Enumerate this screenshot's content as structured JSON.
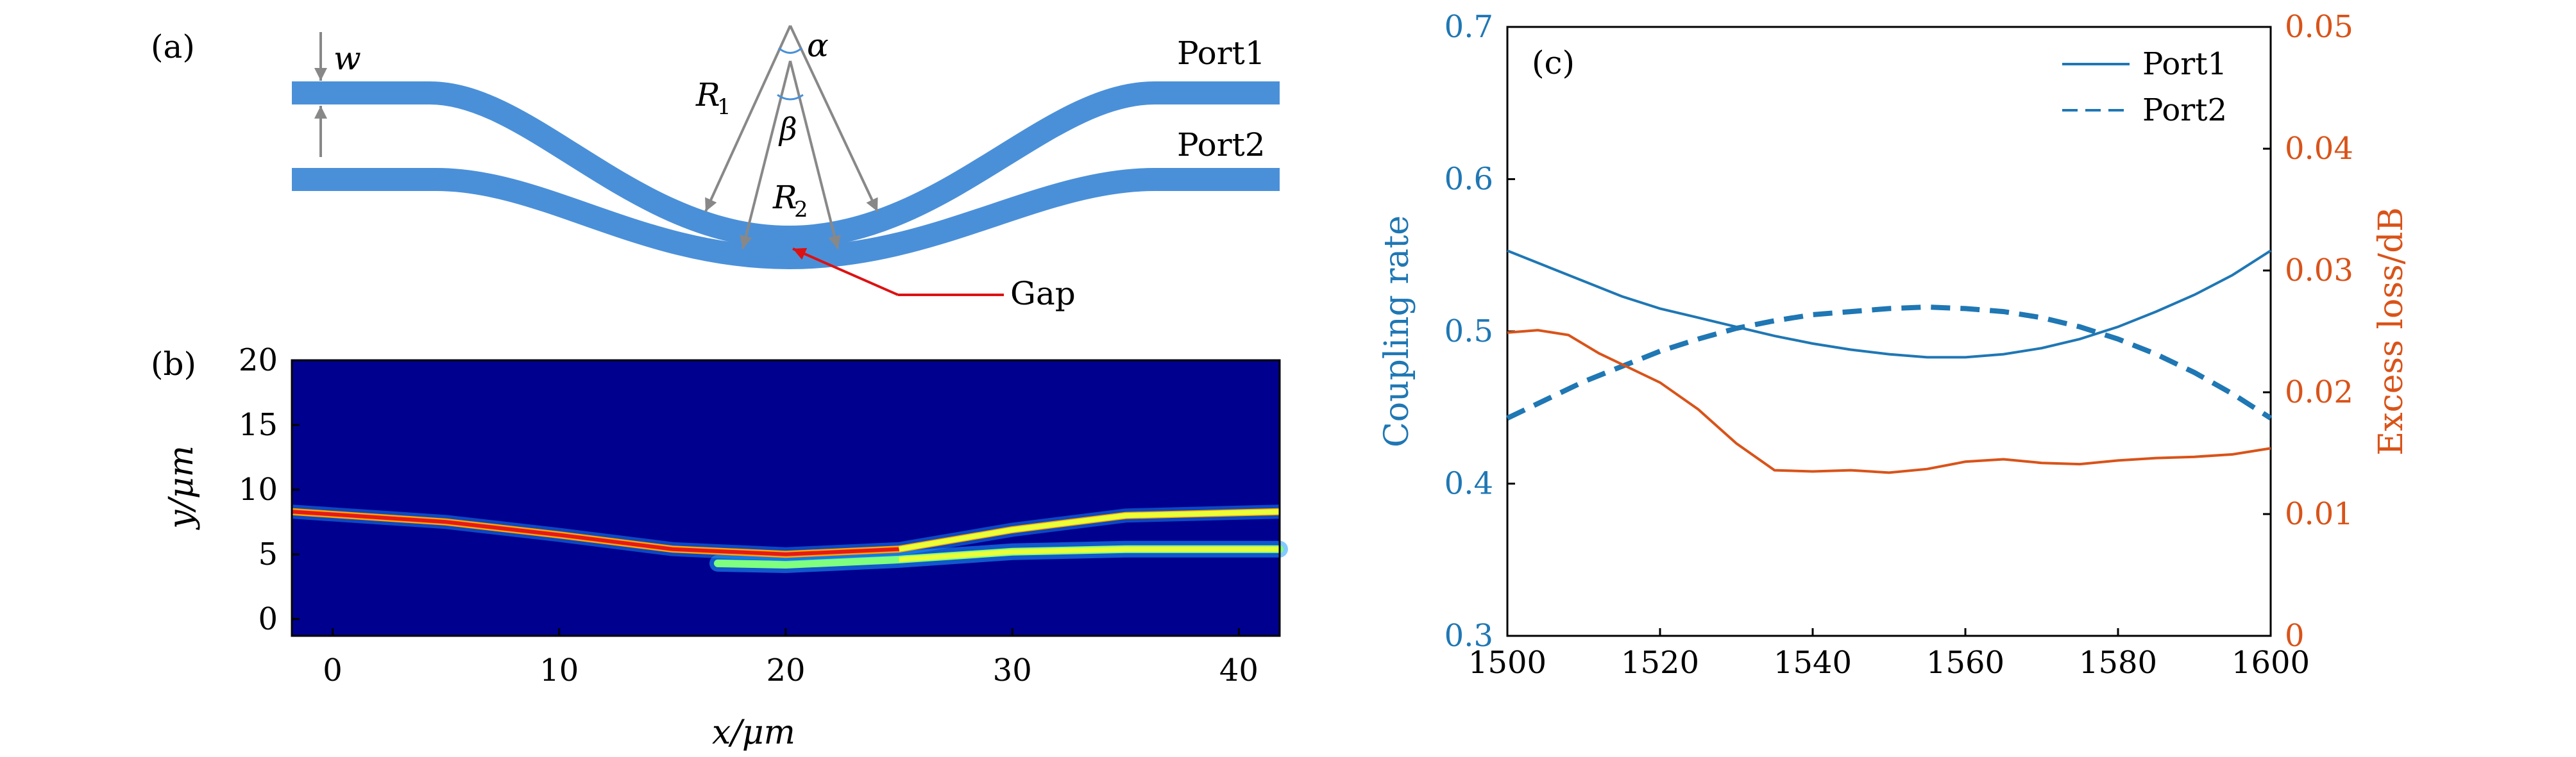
{
  "panel_a": {
    "label": "(a)",
    "symbols": {
      "w": "w",
      "alpha": "α",
      "beta": "β",
      "R1": "R",
      "R1_sub": "1",
      "R2": "R",
      "R2_sub": "2"
    },
    "port1": "Port1",
    "port2": "Port2",
    "gap": "Gap",
    "colors": {
      "waveguide": "#4a90d9",
      "arrow": "#888888",
      "gap_arrow": "#dd1111"
    }
  },
  "panel_b": {
    "label": "(b)",
    "xlabel": "x/μm",
    "ylabel": "y/μm",
    "colors": {
      "background": "#00008f"
    }
  },
  "chart_data": [
    {
      "type": "heatmap",
      "panel": "(b)",
      "xlabel": "x/μm",
      "ylabel": "y/μm",
      "xlim": [
        -1.8,
        41.8
      ],
      "ylim": [
        -1.3,
        20
      ],
      "xticks": [
        0,
        10,
        20,
        30,
        40
      ],
      "yticks": [
        0,
        5,
        10,
        15,
        20
      ],
      "colormap": "jet",
      "upper_waveguide_y_center": [
        [
          -1.8,
          8.3
        ],
        [
          5,
          7.5
        ],
        [
          10,
          6.5
        ],
        [
          15,
          5.4
        ],
        [
          20,
          5.0
        ],
        [
          25,
          5.4
        ],
        [
          30,
          6.9
        ],
        [
          35,
          8.0
        ],
        [
          41.8,
          8.3
        ]
      ],
      "lower_waveguide_y_center": [
        [
          17,
          4.3
        ],
        [
          20,
          4.2
        ],
        [
          25,
          4.6
        ],
        [
          30,
          5.2
        ],
        [
          35,
          5.4
        ],
        [
          41.8,
          5.4
        ]
      ]
    },
    {
      "type": "line",
      "panel": "(c)",
      "xlim": [
        1500,
        1600
      ],
      "xticks": [
        1500,
        1520,
        1540,
        1560,
        1580,
        1600
      ],
      "ylabel_left": "Coupling rate",
      "ylim_left": [
        0.3,
        0.7
      ],
      "yticks_left": [
        0.3,
        0.4,
        0.5,
        0.6,
        0.7
      ],
      "ylabel_right": "Excess loss/dB",
      "ylim_right": [
        0,
        0.05
      ],
      "yticks_right": [
        0,
        0.01,
        0.02,
        0.03,
        0.04,
        0.05
      ],
      "legend_position": "top-right",
      "x": [
        1500,
        1505,
        1510,
        1515,
        1520,
        1525,
        1530,
        1535,
        1540,
        1545,
        1550,
        1555,
        1560,
        1565,
        1570,
        1575,
        1580,
        1585,
        1590,
        1595,
        1600
      ],
      "series": [
        {
          "name": "Port1",
          "axis": "left",
          "style": "solid",
          "color": "#1f77b4",
          "values": [
            0.553,
            0.543,
            0.533,
            0.523,
            0.515,
            0.509,
            0.503,
            0.497,
            0.492,
            0.488,
            0.485,
            0.483,
            0.483,
            0.485,
            0.489,
            0.495,
            0.503,
            0.513,
            0.524,
            0.537,
            0.553
          ]
        },
        {
          "name": "Port2",
          "axis": "left",
          "style": "dashed",
          "color": "#1f77b4",
          "values": [
            0.443,
            0.455,
            0.467,
            0.477,
            0.487,
            0.495,
            0.502,
            0.507,
            0.511,
            0.513,
            0.515,
            0.516,
            0.515,
            0.513,
            0.509,
            0.503,
            0.495,
            0.485,
            0.473,
            0.459,
            0.443
          ]
        },
        {
          "name": "",
          "axis": "right",
          "style": "solid",
          "color": "#d95319",
          "x": [
            1500,
            1504,
            1508,
            1512,
            1516,
            1520,
            1525,
            1530,
            1535,
            1540,
            1545,
            1550,
            1555,
            1560,
            1565,
            1570,
            1575,
            1580,
            1585,
            1590,
            1595,
            1600
          ],
          "values": [
            0.0249,
            0.0251,
            0.0247,
            0.0232,
            0.022,
            0.0208,
            0.0186,
            0.0158,
            0.0136,
            0.0135,
            0.0136,
            0.0134,
            0.0137,
            0.0143,
            0.0145,
            0.0142,
            0.0141,
            0.0144,
            0.0146,
            0.0147,
            0.0149,
            0.0154
          ]
        }
      ]
    }
  ],
  "panel_c": {
    "label": "(c)",
    "colors": {
      "left_axis": "#1f77b4",
      "right_axis": "#d95319",
      "frame": "#000000"
    }
  }
}
